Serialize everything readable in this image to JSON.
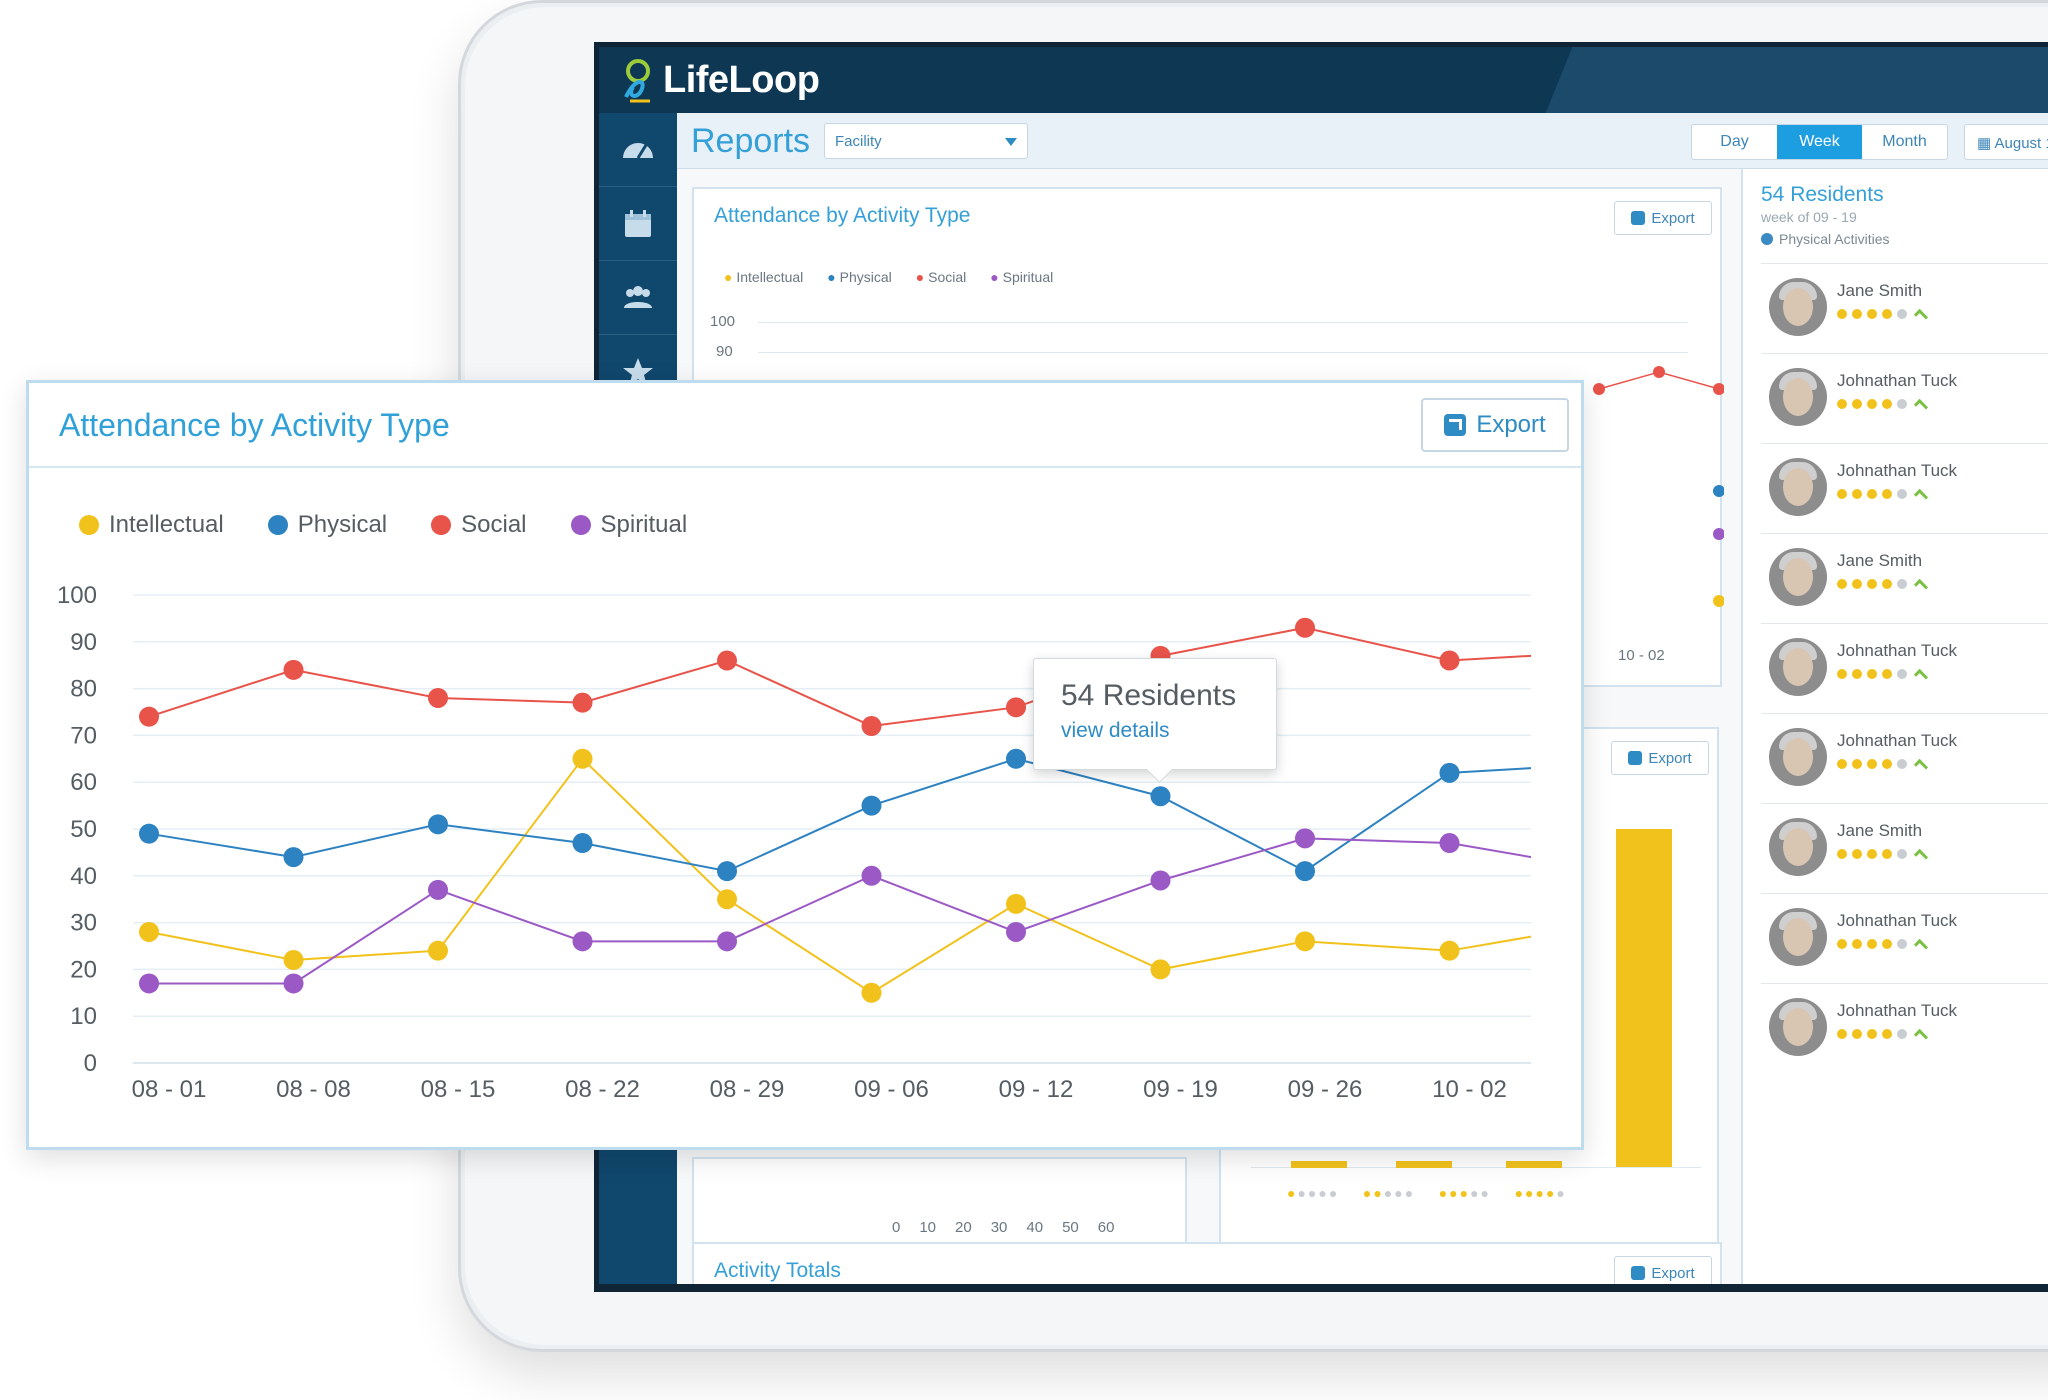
{
  "app": {
    "name": "LifeLoop"
  },
  "reports": {
    "title": "Reports",
    "facility_select": "Facility",
    "range_tabs": [
      "Day",
      "Week",
      "Month"
    ],
    "active_range": "Week",
    "date_button": "August 1"
  },
  "background_cards": {
    "attendance_title": "Attendance by Activity Type",
    "export_label": "Export",
    "mini_legend": [
      "Intellectual",
      "Physical",
      "Social",
      "Spiritual"
    ],
    "mini_y_ticks": [
      "100",
      "90"
    ],
    "mini_x_tick": "10 - 02",
    "bar_axis_ticks": [
      "0",
      "10",
      "20",
      "30",
      "40",
      "50",
      "60"
    ],
    "activity_totals_title": "Activity Totals"
  },
  "residents_panel": {
    "title": "54 Residents",
    "week": "week of 09 - 19",
    "category": "Physical Activities",
    "residents": [
      {
        "name": "Jane Smith",
        "rating": 4
      },
      {
        "name": "Johnathan Tuck",
        "rating": 4
      },
      {
        "name": "Johnathan Tuck",
        "rating": 4
      },
      {
        "name": "Jane Smith",
        "rating": 4
      },
      {
        "name": "Johnathan Tuck",
        "rating": 4
      },
      {
        "name": "Johnathan Tuck",
        "rating": 4
      },
      {
        "name": "Jane Smith",
        "rating": 4
      },
      {
        "name": "Johnathan Tuck",
        "rating": 4
      },
      {
        "name": "Johnathan Tuck",
        "rating": 4
      }
    ]
  },
  "main_card": {
    "title": "Attendance by Activity Type",
    "export_label": "Export",
    "tooltip": {
      "title": "54 Residents",
      "link": "view details"
    }
  },
  "chart_data": {
    "type": "line",
    "title": "Attendance by Activity Type",
    "x": [
      "08 - 01",
      "08 - 08",
      "08 - 15",
      "08 - 22",
      "08 - 29",
      "09 - 06",
      "09 - 12",
      "09 - 19",
      "09 - 26",
      "10 - 02"
    ],
    "ylim": [
      0,
      100
    ],
    "yticks": [
      0,
      10,
      20,
      30,
      40,
      50,
      60,
      70,
      80,
      90,
      100
    ],
    "grid": true,
    "legend_position": "top-left",
    "series": [
      {
        "name": "Intellectual",
        "color": "#f2c21c",
        "values": [
          28,
          22,
          24,
          65,
          35,
          15,
          34,
          20,
          26,
          24
        ],
        "trailing": 27
      },
      {
        "name": "Physical",
        "color": "#2d82c1",
        "values": [
          49,
          44,
          51,
          47,
          41,
          55,
          65,
          57,
          41,
          62
        ],
        "trailing": 63
      },
      {
        "name": "Social",
        "color": "#e8534a",
        "values": [
          74,
          84,
          78,
          77,
          86,
          72,
          76,
          87,
          93,
          86
        ],
        "trailing": 87
      },
      {
        "name": "Spiritual",
        "color": "#9b59c6",
        "values": [
          17,
          17,
          37,
          26,
          26,
          40,
          28,
          39,
          48,
          47
        ],
        "trailing": 44
      }
    ]
  }
}
